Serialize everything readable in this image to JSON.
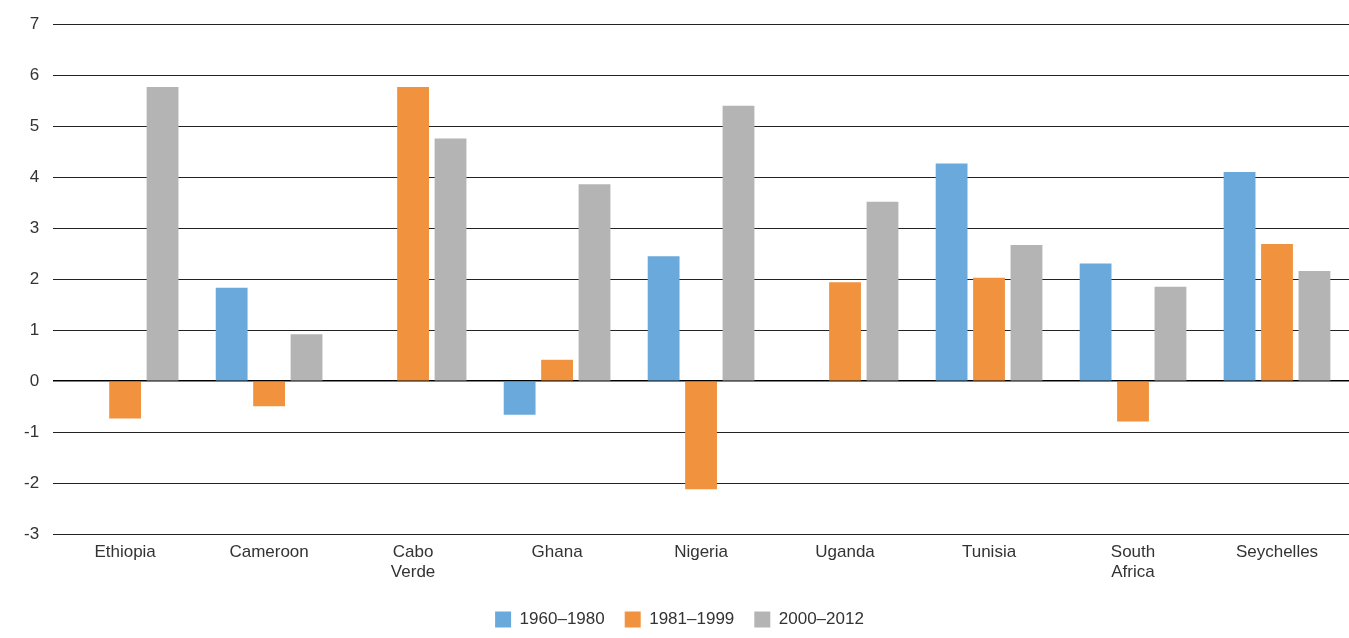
{
  "chart_data": {
    "type": "bar",
    "categories": [
      "Ethiopia",
      "Cameroon",
      "Cabo Verde",
      "Ghana",
      "Nigeria",
      "Uganda",
      "Tunisia",
      "South Africa",
      "Seychelles"
    ],
    "series": [
      {
        "name": "1960–1980",
        "color": "#6aa9dc",
        "values": [
          null,
          1.83,
          null,
          -0.66,
          2.45,
          null,
          4.27,
          2.31,
          4.1
        ]
      },
      {
        "name": "1981–1999",
        "color": "#f0923e",
        "values": [
          -0.73,
          -0.49,
          5.77,
          0.42,
          -2.12,
          1.94,
          2.03,
          -0.79,
          2.69
        ]
      },
      {
        "name": "2000–2012",
        "color": "#b4b4b4",
        "values": [
          5.77,
          0.92,
          4.76,
          3.86,
          5.4,
          3.52,
          2.67,
          1.85,
          2.16
        ]
      }
    ],
    "ylim": [
      -3,
      7
    ],
    "yticks": [
      -3,
      -2,
      -1,
      0,
      1,
      2,
      3,
      4,
      5,
      6,
      7
    ],
    "grid": "y",
    "legend": "bottom"
  }
}
